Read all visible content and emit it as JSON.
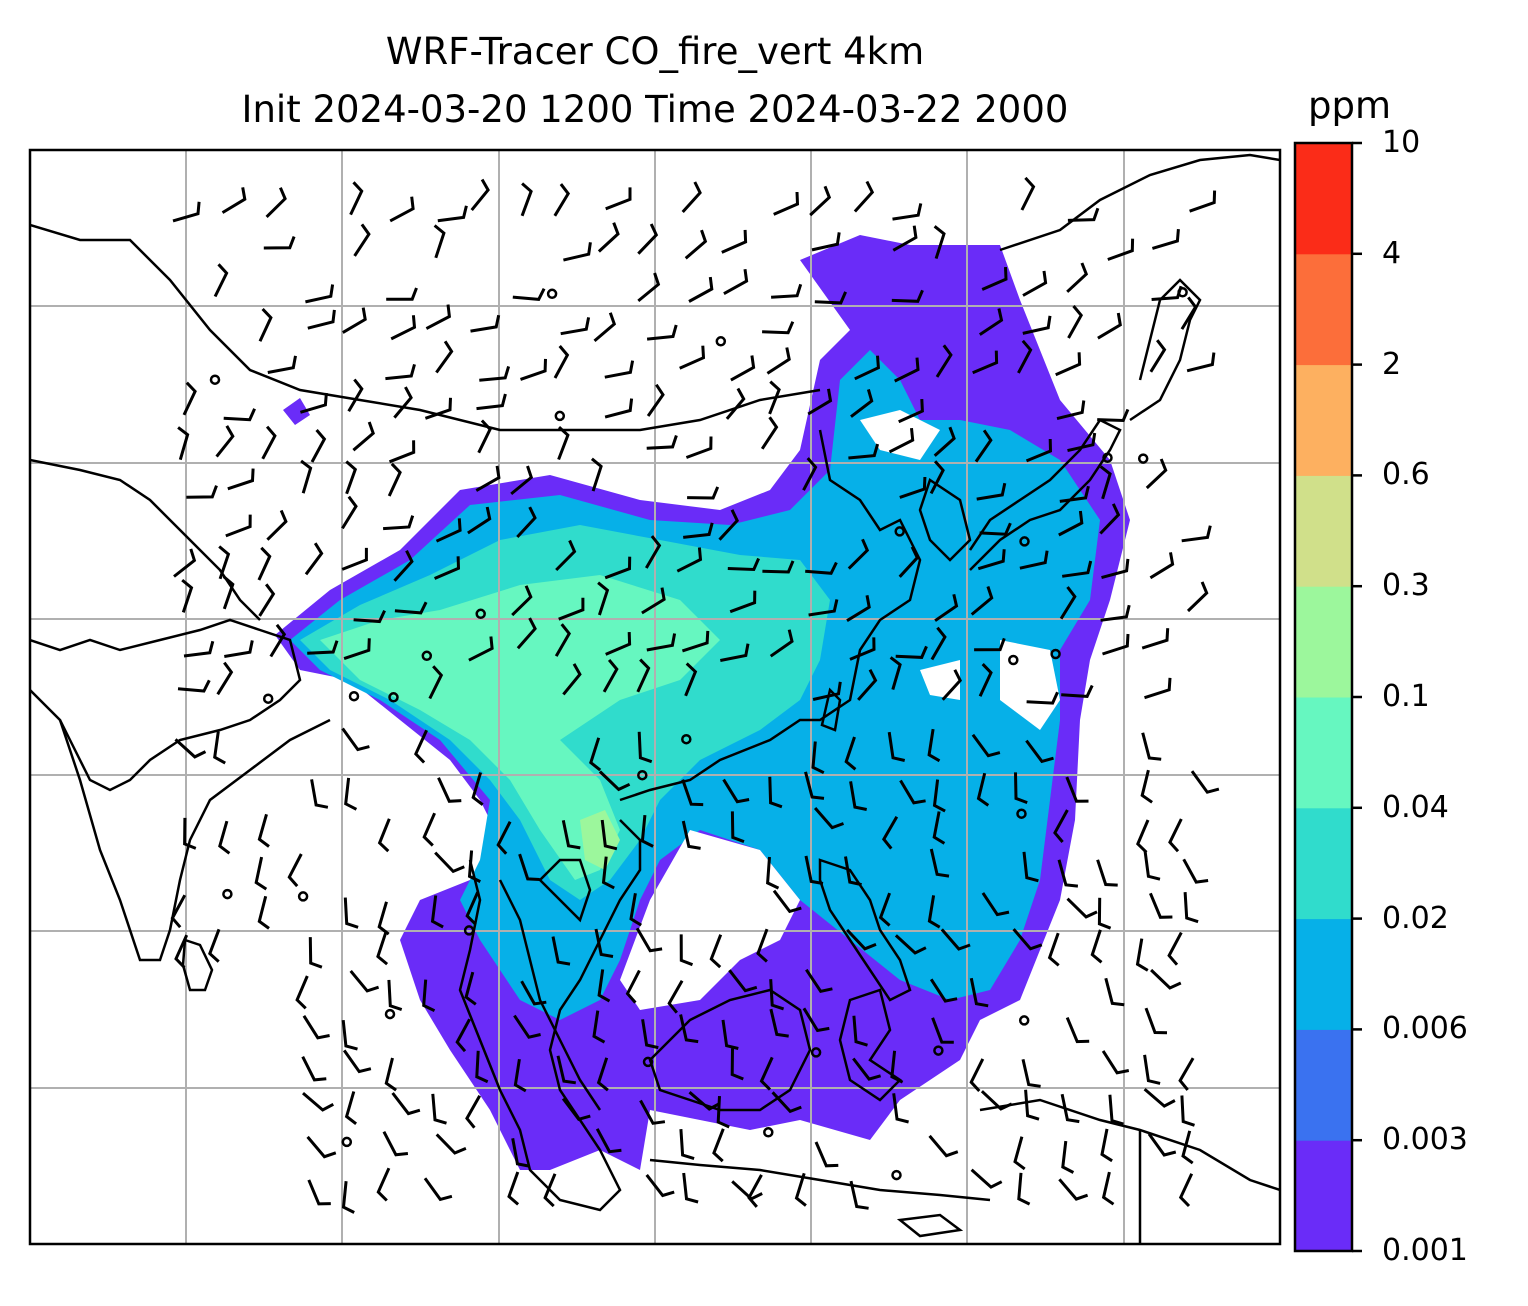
{
  "title": {
    "line1": "WRF-Tracer CO_fire_vert 4km",
    "line2": "Init 2024-03-20 1200 Time 2024-03-22 2000"
  },
  "colorbar": {
    "units": "ppm",
    "levels": [
      "0.001",
      "0.003",
      "0.006",
      "0.02",
      "0.04",
      "0.1",
      "0.3",
      "0.6",
      "2",
      "4",
      "10"
    ],
    "colors": [
      "#6a2cf8",
      "#3a72f0",
      "#06b0e8",
      "#30dccc",
      "#66f7c0",
      "#9cf79c",
      "#d0e08a",
      "#fdb060",
      "#fc6e3a",
      "#fb2c18"
    ]
  },
  "map": {
    "plume_colors": {
      "outer": "#6a2cf8",
      "mid": "#06b0e8",
      "inner": "#30dccc",
      "core": "#66f7c0",
      "hot": "#9cf79c"
    },
    "coastline_color": "#000000",
    "gridline_color": "#b0b0b0"
  }
}
